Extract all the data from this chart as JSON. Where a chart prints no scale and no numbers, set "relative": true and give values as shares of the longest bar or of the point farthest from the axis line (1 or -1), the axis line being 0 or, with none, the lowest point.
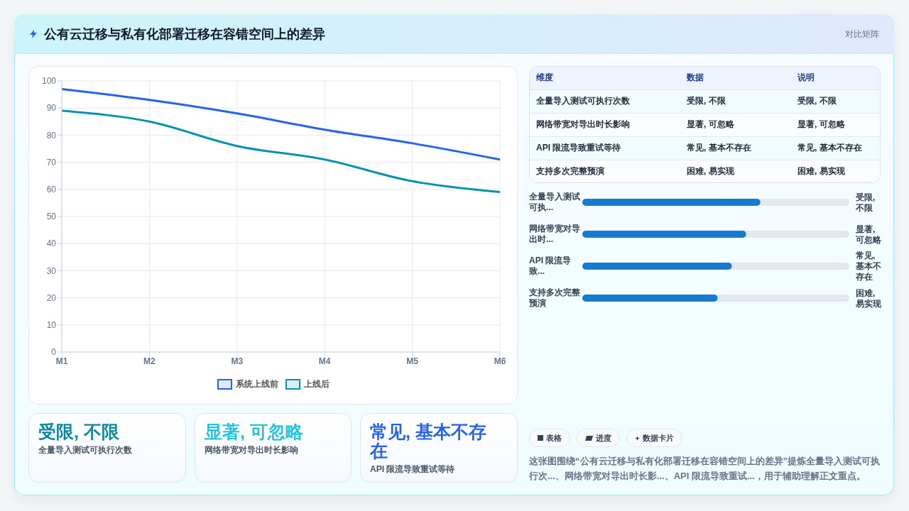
{
  "chart_data": [
    {
      "type": "other",
      "title": "公有云迁移与私有化部署迁移在容错空间上的差异",
      "subtitle": "对比矩阵"
    },
    {
      "type": "line",
      "categories": [
        "M1",
        "M2",
        "M3",
        "M4",
        "M5",
        "M6"
      ],
      "series": [
        {
          "name": "系统上线前",
          "color": "#2563eb",
          "values": [
            97,
            93,
            88,
            82,
            77,
            71
          ]
        },
        {
          "name": "上线后",
          "color": "#0891b2",
          "values": [
            89,
            85,
            76,
            71,
            63,
            59
          ]
        }
      ],
      "ylim": [
        0,
        100
      ],
      "yticks": [
        0,
        10,
        20,
        30,
        40,
        50,
        60,
        70,
        80,
        90,
        100
      ],
      "grid": true,
      "legend": "bottom"
    },
    {
      "type": "other",
      "categories": [
        "维度",
        "数据",
        "说明"
      ],
      "annotations": [
        "全量导入测试可执行次数",
        "受限, 不限",
        "受限, 不限",
        "网络带宽对导出时长影响",
        "显著, 可忽略",
        "显著, 可忽略",
        "API 限流导致重试等待",
        "常见, 基本不存在",
        "常见, 基本不存在",
        "支持多次完整预演",
        "困难, 易实现",
        "困难, 易实现"
      ]
    },
    {
      "type": "bar",
      "orientation": "horizontal",
      "relative": true,
      "categories": [
        "全量导入测试可执...",
        "网络带宽对导出时...",
        "API 限流导致...",
        "支持多次完整预演"
      ],
      "values": [
        1,
        0.92,
        0.84,
        0.76
      ],
      "color": "#167ace",
      "annotations": [
        "受限, 不限",
        "显著, 可忽略",
        "常见, 基本不存在",
        "困难, 易实现"
      ]
    },
    {
      "type": "other",
      "title": "受限, 不限",
      "subtitle": "全量导入测试可执行次数",
      "color": "#0e8a9c"
    },
    {
      "type": "other",
      "title": "显著, 可忽略",
      "subtitle": "网络带宽对导出时长影响",
      "color": "#22c5de"
    },
    {
      "type": "other",
      "title": "常见, 基本不存在",
      "subtitle": "API 限流导致重试等待",
      "color": "#2563eb"
    },
    {
      "type": "other",
      "categories": [
        "表格",
        "进度",
        "数据卡片"
      ],
      "annotations": [
        "这张图围绕“公有云迁移与私有化部署迁移在容错空间上的差异”提炼全量导入测试可执行次...、网络带宽对导出时长影...、API 限流导致重试...，用于辅助理解正文重点。"
      ]
    }
  ]
}
